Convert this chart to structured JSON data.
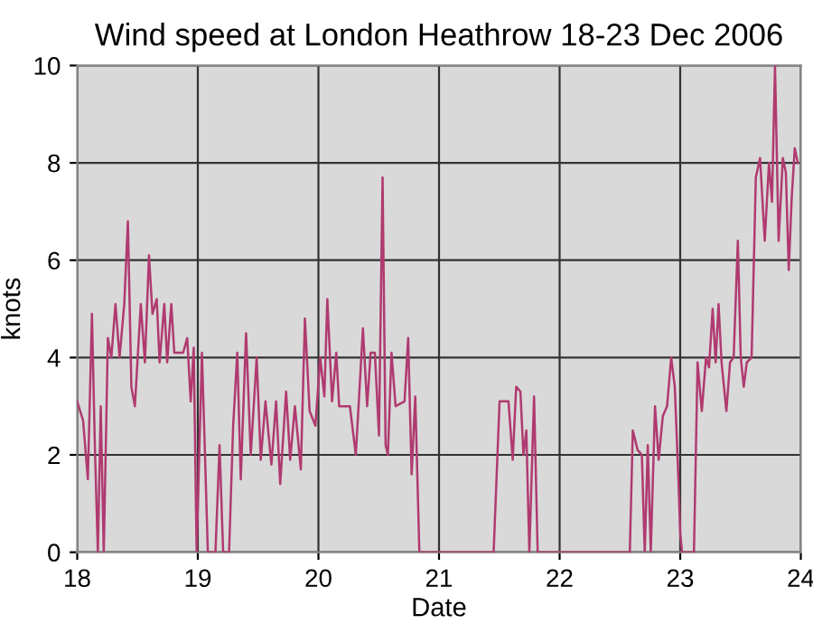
{
  "chart_data": {
    "type": "line",
    "title": "Wind speed at London Heathrow 18-23 Dec 2006",
    "xlabel": "Date",
    "ylabel": "knots",
    "xlim": [
      18,
      24
    ],
    "xticks": [
      18,
      19,
      20,
      21,
      22,
      23,
      24
    ],
    "ylim": [
      0,
      10
    ],
    "yticks": [
      0,
      2,
      4,
      6,
      8,
      10
    ],
    "grid": true,
    "marker": "none",
    "line_style": "solid",
    "series": [
      {
        "color": "#b03a70",
        "x": [
          18.0,
          18.049,
          18.088,
          18.122,
          18.146,
          18.171,
          18.195,
          18.22,
          18.254,
          18.283,
          18.317,
          18.351,
          18.39,
          18.42,
          18.449,
          18.478,
          18.527,
          18.561,
          18.595,
          18.624,
          18.659,
          18.683,
          18.722,
          18.746,
          18.78,
          18.805,
          18.878,
          18.912,
          18.941,
          18.966,
          18.99,
          19.034,
          19.063,
          19.083,
          19.146,
          19.18,
          19.21,
          19.259,
          19.293,
          19.327,
          19.356,
          19.4,
          19.439,
          19.488,
          19.522,
          19.561,
          19.61,
          19.649,
          19.683,
          19.732,
          19.766,
          19.805,
          19.854,
          19.888,
          19.927,
          19.975,
          20.015,
          20.049,
          20.074,
          20.113,
          20.148,
          20.172,
          20.261,
          20.31,
          20.369,
          20.404,
          20.433,
          20.468,
          20.502,
          20.532,
          20.557,
          20.576,
          20.606,
          20.64,
          20.714,
          20.744,
          20.773,
          20.803,
          20.837,
          21.453,
          21.502,
          21.576,
          21.611,
          21.64,
          21.675,
          21.7,
          21.724,
          21.749,
          21.788,
          21.818,
          21.872,
          22.507,
          22.582,
          22.607,
          22.647,
          22.682,
          22.706,
          22.731,
          22.756,
          22.791,
          22.821,
          22.856,
          22.891,
          22.925,
          22.955,
          22.985,
          23.0,
          23.015,
          23.114,
          23.144,
          23.179,
          23.214,
          23.239,
          23.269,
          23.294,
          23.318,
          23.343,
          23.383,
          23.413,
          23.443,
          23.478,
          23.502,
          23.527,
          23.552,
          23.592,
          23.627,
          23.662,
          23.701,
          23.736,
          23.761,
          23.786,
          23.816,
          23.851,
          23.876,
          23.9,
          23.925,
          23.95,
          23.975
        ],
        "values": [
          3.1,
          2.7,
          1.5,
          4.9,
          2.2,
          0,
          3.0,
          0,
          4.4,
          4.0,
          5.1,
          4.0,
          5.1,
          6.8,
          3.4,
          3.0,
          5.1,
          3.9,
          6.1,
          4.9,
          5.2,
          3.9,
          5.1,
          3.9,
          5.1,
          4.1,
          4.1,
          4.4,
          3.1,
          4.2,
          0,
          4.1,
          1.7,
          0,
          0,
          2.2,
          0,
          0,
          2.6,
          4.1,
          1.5,
          4.5,
          2.0,
          4.0,
          1.9,
          3.1,
          1.8,
          3.1,
          1.4,
          3.3,
          1.9,
          3.0,
          1.7,
          4.8,
          2.9,
          2.6,
          4.0,
          3.2,
          5.2,
          3.1,
          4.1,
          3.0,
          3.0,
          2.0,
          4.6,
          3.0,
          4.1,
          4.1,
          2.4,
          7.7,
          2.2,
          2.0,
          4.1,
          3.0,
          3.1,
          4.4,
          1.6,
          3.2,
          0,
          0,
          3.1,
          3.1,
          1.9,
          3.4,
          3.3,
          2.0,
          2.5,
          0,
          3.2,
          0,
          0,
          0,
          0,
          2.5,
          2.1,
          2.0,
          0,
          2.2,
          0,
          3.0,
          1.9,
          2.8,
          3.0,
          4.0,
          3.4,
          1.5,
          0.4,
          0,
          0,
          3.9,
          2.9,
          4.0,
          3.8,
          5.0,
          3.9,
          5.1,
          3.9,
          2.9,
          3.9,
          4.0,
          6.4,
          4.0,
          3.4,
          3.9,
          4.0,
          7.7,
          8.1,
          6.4,
          8.0,
          7.2,
          10.0,
          6.4,
          8.1,
          7.8,
          5.8,
          7.3,
          8.3,
          8.0
        ]
      }
    ]
  }
}
